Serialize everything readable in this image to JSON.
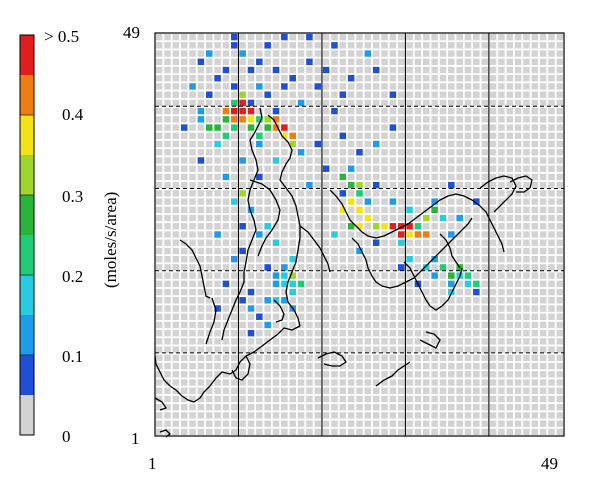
{
  "colorbar": {
    "labels": [
      "> 0.5",
      "0.4",
      "0.3",
      "0.2",
      "0.1",
      "0"
    ],
    "unit": "(moles/s/area)",
    "bands": [
      {
        "from": 0.0,
        "to": 0.05,
        "color": "#d3d3d3"
      },
      {
        "from": 0.05,
        "to": 0.1,
        "color": "#1f4fd6"
      },
      {
        "from": 0.1,
        "to": 0.15,
        "color": "#1e9bea"
      },
      {
        "from": 0.15,
        "to": 0.2,
        "color": "#28cbe0"
      },
      {
        "from": 0.2,
        "to": 0.25,
        "color": "#22cc77"
      },
      {
        "from": 0.25,
        "to": 0.3,
        "color": "#29b53a"
      },
      {
        "from": 0.3,
        "to": 0.35,
        "color": "#9ed62c"
      },
      {
        "from": 0.35,
        "to": 0.4,
        "color": "#f2e21a"
      },
      {
        "from": 0.4,
        "to": 0.45,
        "color": "#f07d12"
      },
      {
        "from": 0.45,
        "to": 0.5,
        "color": "#e01e1e"
      }
    ]
  },
  "axes": {
    "x_min_label": "1",
    "x_max_label": "49",
    "y_min_label": "1",
    "y_max_label": "49"
  },
  "grid": {
    "size": 49,
    "cell_color": "#d3d3d3",
    "coarse_lines_every": 10,
    "vertical_line_style": "solid",
    "horizontal_line_style": "dashed"
  },
  "emissions_cells": [
    [
      10,
      49,
      1
    ],
    [
      16,
      49,
      1
    ],
    [
      19,
      49,
      1
    ],
    [
      10,
      48,
      1
    ],
    [
      14,
      48,
      1
    ],
    [
      22,
      48,
      1
    ],
    [
      26,
      47,
      2
    ],
    [
      7,
      47,
      2
    ],
    [
      11,
      47,
      2
    ],
    [
      6,
      46,
      1
    ],
    [
      13,
      46,
      1
    ],
    [
      19,
      46,
      1
    ],
    [
      9,
      45,
      1
    ],
    [
      12,
      45,
      1
    ],
    [
      15,
      45,
      1
    ],
    [
      21,
      45,
      1
    ],
    [
      27,
      45,
      1
    ],
    [
      8,
      44,
      1
    ],
    [
      17,
      44,
      1
    ],
    [
      24,
      44,
      1
    ],
    [
      5,
      43,
      2
    ],
    [
      10,
      43,
      1
    ],
    [
      13,
      43,
      2
    ],
    [
      16,
      43,
      1
    ],
    [
      20,
      43,
      1
    ],
    [
      7,
      42,
      1
    ],
    [
      11,
      42,
      1
    ],
    [
      14,
      42,
      1
    ],
    [
      23,
      42,
      1
    ],
    [
      29,
      42,
      1
    ],
    [
      12,
      41,
      1
    ],
    [
      18,
      41,
      2
    ],
    [
      6,
      40,
      2
    ],
    [
      15,
      40,
      1
    ],
    [
      22,
      40,
      1
    ],
    [
      4,
      38,
      1
    ],
    [
      10,
      41,
      4
    ],
    [
      11,
      41,
      9
    ],
    [
      10,
      40,
      9
    ],
    [
      11,
      40,
      9
    ],
    [
      12,
      40,
      9
    ],
    [
      9,
      40,
      8
    ],
    [
      10,
      39,
      8
    ],
    [
      11,
      39,
      8
    ],
    [
      12,
      39,
      7
    ],
    [
      9,
      39,
      5
    ],
    [
      11,
      42,
      6
    ],
    [
      10,
      38,
      4
    ],
    [
      8,
      38,
      5
    ],
    [
      7,
      38,
      5
    ],
    [
      9,
      37,
      4
    ],
    [
      12,
      38,
      5
    ],
    [
      13,
      39,
      4
    ],
    [
      14,
      39,
      6
    ],
    [
      15,
      39,
      8
    ],
    [
      16,
      38,
      9
    ],
    [
      17,
      37,
      8
    ],
    [
      16,
      37,
      7
    ],
    [
      17,
      36,
      6
    ],
    [
      15,
      38,
      8
    ],
    [
      14,
      38,
      5
    ],
    [
      13,
      37,
      4
    ],
    [
      6,
      39,
      2
    ],
    [
      8,
      36,
      3
    ],
    [
      13,
      36,
      2
    ],
    [
      18,
      35,
      2
    ],
    [
      20,
      36,
      1
    ],
    [
      23,
      37,
      1
    ],
    [
      25,
      35,
      1
    ],
    [
      27,
      36,
      2
    ],
    [
      29,
      38,
      1
    ],
    [
      6,
      34,
      1
    ],
    [
      11,
      34,
      2
    ],
    [
      15,
      34,
      3
    ],
    [
      21,
      33,
      1
    ],
    [
      24,
      33,
      2
    ],
    [
      27,
      31,
      1
    ],
    [
      9,
      32,
      2
    ],
    [
      13,
      32,
      1
    ],
    [
      19,
      31,
      2
    ],
    [
      23,
      30,
      1
    ],
    [
      26,
      29,
      2
    ],
    [
      29,
      29,
      2
    ],
    [
      36,
      31,
      1
    ],
    [
      39,
      29,
      1
    ],
    [
      11,
      30,
      6
    ],
    [
      10,
      29,
      3
    ],
    [
      12,
      28,
      2
    ],
    [
      14,
      26,
      3
    ],
    [
      11,
      26,
      1
    ],
    [
      8,
      25,
      2
    ],
    [
      13,
      25,
      2
    ],
    [
      15,
      24,
      3
    ],
    [
      11,
      23,
      1
    ],
    [
      10,
      22,
      2
    ],
    [
      14,
      21,
      1
    ],
    [
      17,
      22,
      3
    ],
    [
      23,
      32,
      5
    ],
    [
      24,
      31,
      5
    ],
    [
      25,
      31,
      6
    ],
    [
      25,
      30,
      4
    ],
    [
      24,
      29,
      7
    ],
    [
      23,
      28,
      7
    ],
    [
      25,
      28,
      7
    ],
    [
      26,
      27,
      7
    ],
    [
      24,
      26,
      5
    ],
    [
      25,
      26,
      7
    ],
    [
      27,
      26,
      6
    ],
    [
      28,
      26,
      7
    ],
    [
      29,
      26,
      9
    ],
    [
      30,
      26,
      9
    ],
    [
      31,
      26,
      9
    ],
    [
      30,
      25,
      9
    ],
    [
      31,
      25,
      7
    ],
    [
      32,
      25,
      8
    ],
    [
      32,
      26,
      4
    ],
    [
      33,
      27,
      6
    ],
    [
      31,
      28,
      3
    ],
    [
      34,
      29,
      2
    ],
    [
      34,
      28,
      5
    ],
    [
      35,
      27,
      3
    ],
    [
      37,
      27,
      2
    ],
    [
      33,
      25,
      8
    ],
    [
      36,
      25,
      2
    ],
    [
      22,
      25,
      3
    ],
    [
      30,
      24,
      3
    ],
    [
      27,
      24,
      1
    ],
    [
      25,
      23,
      2
    ],
    [
      31,
      22,
      3
    ],
    [
      34,
      22,
      2
    ],
    [
      30,
      21,
      1
    ],
    [
      33,
      21,
      3
    ],
    [
      35,
      21,
      4
    ],
    [
      36,
      20,
      5
    ],
    [
      37,
      21,
      5
    ],
    [
      37,
      20,
      3
    ],
    [
      38,
      20,
      4
    ],
    [
      38,
      19,
      3
    ],
    [
      39,
      19,
      4
    ],
    [
      36,
      19,
      2
    ],
    [
      34,
      20,
      2
    ],
    [
      39,
      18,
      1
    ],
    [
      32,
      19,
      1
    ],
    [
      36,
      18,
      3
    ],
    [
      15,
      20,
      2
    ],
    [
      16,
      20,
      3
    ],
    [
      16,
      19,
      3
    ],
    [
      17,
      19,
      3
    ],
    [
      15,
      19,
      2
    ],
    [
      17,
      20,
      6
    ],
    [
      16,
      21,
      2
    ],
    [
      18,
      19,
      4
    ],
    [
      17,
      18,
      3
    ],
    [
      16,
      17,
      2
    ],
    [
      14,
      17,
      2
    ],
    [
      11,
      17,
      1
    ],
    [
      12,
      16,
      2
    ],
    [
      13,
      15,
      1
    ],
    [
      14,
      14,
      2
    ],
    [
      12,
      13,
      1
    ],
    [
      8,
      16,
      1
    ],
    [
      12,
      18,
      1
    ],
    [
      17,
      16,
      2
    ],
    [
      9,
      19,
      1
    ],
    [
      15,
      17,
      3
    ]
  ],
  "coastlines": [
    "M 268 115 L 274 120 L 278 128 L 282 136 L 288 142 L 292 150 L 290 158 L 286 164 L 282 172 L 280 180 L 286 188 L 292 196 L 296 206 L 298 216 L 300 226 L 300 238 L 298 250 L 296 262 L 292 272 L 288 282 L 286 292 L 288 302 L 294 310 L 298 318 L 300 326",
    "M 300 326 L 292 330 L 284 328 L 278 334 L 270 340 L 262 346 L 254 352 L 246 356 L 240 362 L 236 370 L 230 374 L 222 372 L 216 378 L 210 386 L 204 392 L 200 398 L 194 402 L 188 400 L 182 396 L 176 390 L 170 386",
    "M 170 386 L 164 380 L 160 372 L 156 364 L 155 356",
    "M 246 356 L 250 364 L 248 374 L 242 380 L 236 378 L 232 370",
    "M 260 108 L 262 118 L 258 126 L 254 134 L 250 140 L 252 150 L 256 160 L 258 170 L 254 180 L 250 190 L 248 200 L 250 210 L 254 220 L 256 230 L 252 240 L 248 250 L 246 262 L 244 272 L 244 282 L 240 292 L 236 300 L 232 310 L 228 320 L 224 330 L 222 340",
    "M 330 190 L 336 196 L 342 204 L 346 212 L 350 220 L 356 226 L 362 232 L 368 236 L 376 238 L 384 236 L 392 232 L 400 228 L 408 224 L 416 218 L 424 212 L 432 206 L 440 200 L 448 196 L 456 194 L 464 196",
    "M 464 196 L 472 200 L 480 206 L 486 212 L 490 220 L 494 228 L 498 236 L 502 244 L 504 252",
    "M 480 188 L 488 182 L 496 178 L 504 176 L 512 178 L 516 186 L 512 194 L 506 200 L 500 206 L 494 212",
    "M 510 182 L 518 178 L 526 176 L 532 180 L 530 188 L 524 192 L 516 192",
    "M 352 238 L 358 244 L 362 252 L 366 260 L 368 268 L 372 276 L 376 282 L 382 286 L 390 288 L 398 286 L 406 282 L 414 278 L 420 272 L 426 266 L 432 260 L 438 254 L 444 248 L 450 242 L 456 236 L 462 230 L 468 224 L 472 218",
    "M 404 262 L 410 268 L 414 276 L 418 284 L 422 292 L 426 300 L 430 306 L 436 310 L 442 306 L 448 300 L 452 292 L 456 284 L 460 276 L 462 268",
    "M 440 234 L 446 240 L 450 248 L 452 256 L 456 262 L 460 268",
    "M 274 300 L 280 306 L 284 314 L 282 320 L 276 322",
    "M 318 358 L 326 354 L 334 352 L 342 356 L 346 362 L 340 366 L 332 366 L 324 364",
    "M 376 386 L 384 380 L 392 376 L 398 370 L 404 366 L 410 362",
    "M 420 340 L 428 344 L 436 348 L 440 340 L 434 334 L 426 332",
    "M 212 298 L 216 310 L 214 322 L 210 332 L 206 344",
    "M 180 240 L 186 244 L 192 250 L 196 258 L 200 266 L 202 276 L 204 286 L 206 296 L 210 298",
    "M 155 398 L 162 402 L 166 408 L 160 410",
    "M 250 180 L 262 184 L 270 190 L 276 200 L 280 210 L 278 220 L 272 230 L 266 238 L 262 246 L 258 256",
    "M 300 226 L 308 232 L 314 240 L 320 248 L 324 256 L 328 264 L 330 272",
    "M 160 432 L 166 430 L 170 434 L 166 437"
  ]
}
